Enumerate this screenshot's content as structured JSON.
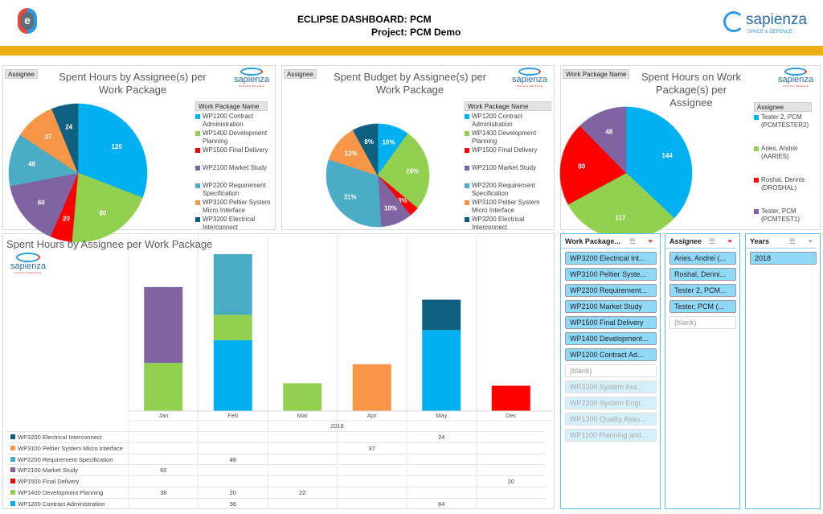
{
  "header": {
    "title": "ECLIPSE DASHBOARD: PCM",
    "project": "Project: PCM Demo",
    "logo_left": "e",
    "logo_right": {
      "name": "sapienza",
      "tagline": "SPACE & DEFENCE"
    }
  },
  "colors": {
    "accent_bar": "#ECB015",
    "WP1200": "#00B0F0",
    "WP1400": "#92D050",
    "WP1500": "#FF0000",
    "WP2100": "#8064A2",
    "WP2200": "#4BACC6",
    "WP3100": "#F79646",
    "WP3200": "#0E5F80"
  },
  "work_packages": [
    {
      "id": "WP1200",
      "label": "WP1200 Contract Administration"
    },
    {
      "id": "WP1400",
      "label": "WP1400 Development Planning"
    },
    {
      "id": "WP1500",
      "label": "WP1500 Final Delivery"
    },
    {
      "id": "WP2100",
      "label": "WP2100 Market Study"
    },
    {
      "id": "WP2200",
      "label": "WP2200 Requirement Specification"
    },
    {
      "id": "WP3100",
      "label": "WP3100 Peltier System Micro Interface"
    },
    {
      "id": "WP3200",
      "label": "WP3200 Electrical Interconnect"
    }
  ],
  "chart_data": [
    {
      "type": "pie",
      "title": "Spent Hours by Assignee(s) per Work Package",
      "filter_button": "Assignee",
      "legend_title": "Work Package Name",
      "legend": "right",
      "categories": [
        "WP1200",
        "WP1400",
        "WP1500",
        "WP2100",
        "WP2200",
        "WP3100",
        "WP3200"
      ],
      "values": [
        120,
        80,
        20,
        60,
        48,
        37,
        24
      ],
      "labels": [
        "120",
        "80",
        "20",
        "60",
        "48",
        "37",
        "24"
      ]
    },
    {
      "type": "pie",
      "title": "Spent Budget by Assignee(s) per Work Package",
      "filter_button": "Assignee",
      "legend_title": "Work Package Name",
      "legend": "right",
      "categories": [
        "WP1200",
        "WP1400",
        "WP1500",
        "WP2100",
        "WP2200",
        "WP3100",
        "WP3200"
      ],
      "values": [
        10,
        26,
        3,
        10,
        31,
        12,
        8
      ],
      "labels": [
        "10%",
        "26%",
        "3%",
        "10%",
        "31%",
        "12%",
        "8%"
      ]
    },
    {
      "type": "pie",
      "title": "Spent Hours on Work Package(s) per Assignee",
      "filter_button": "Work Package Name",
      "legend_title": "Assignee",
      "legend": "right",
      "categories": [
        "Tester 2, PCM (PCMTESTER2)",
        "Aries, Andrei (AARIES)",
        "Roshal, Dennis (DROSHAL)",
        "Tester, PCM (PCMTEST1)"
      ],
      "colors": [
        "#00B0F0",
        "#92D050",
        "#FF0000",
        "#8064A2"
      ],
      "values": [
        144,
        117,
        80,
        48
      ],
      "labels": [
        "144",
        "117",
        "80",
        "48"
      ]
    },
    {
      "type": "bar",
      "stacked": true,
      "title": "Spent Hours by Assignee per Work Package",
      "categories": [
        "Jan",
        "Feb",
        "Mar",
        "Apr",
        "May",
        "Dec"
      ],
      "group_label": "2018",
      "series": [
        {
          "name": "WP3200 Electrical Interconnect",
          "key": "WP3200",
          "values": [
            null,
            null,
            null,
            null,
            24,
            null
          ]
        },
        {
          "name": "WP3100 Peltier System Micro Interface",
          "key": "WP3100",
          "values": [
            null,
            null,
            null,
            37,
            null,
            null
          ]
        },
        {
          "name": "WP2200 Requirement Specification",
          "key": "WP2200",
          "values": [
            null,
            48,
            null,
            null,
            null,
            null
          ]
        },
        {
          "name": "WP2100 Market Study",
          "key": "WP2100",
          "values": [
            60,
            null,
            null,
            null,
            null,
            null
          ]
        },
        {
          "name": "WP1500 Final Delivery",
          "key": "WP1500",
          "values": [
            null,
            null,
            null,
            null,
            null,
            20
          ]
        },
        {
          "name": "WP1400 Development Planning",
          "key": "WP1400",
          "values": [
            38,
            20,
            22,
            null,
            null,
            null
          ]
        },
        {
          "name": "WP1200 Contract Administration",
          "key": "WP1200",
          "values": [
            null,
            56,
            null,
            null,
            64,
            null
          ]
        }
      ]
    }
  ],
  "slicers": [
    {
      "title": "Work Package...",
      "items": [
        {
          "label": "WP3200 Electrical Int...",
          "state": "selected"
        },
        {
          "label": "WP3100 Peltier Syste...",
          "state": "selected"
        },
        {
          "label": "WP2200 Requirement...",
          "state": "selected"
        },
        {
          "label": "WP2100 Market Study",
          "state": "selected"
        },
        {
          "label": "WP1500 Final Delivery",
          "state": "selected"
        },
        {
          "label": "WP1400 Development...",
          "state": "selected"
        },
        {
          "label": "WP1200 Contract Ad...",
          "state": "selected"
        },
        {
          "label": "(blank)",
          "state": "blank"
        },
        {
          "label": "WP3300 System Ass...",
          "state": "dim"
        },
        {
          "label": "WP2300 System Engi...",
          "state": "dim"
        },
        {
          "label": "WP1300 Quality Assu...",
          "state": "dim"
        },
        {
          "label": "WP1100 Planning and...",
          "state": "dim"
        }
      ]
    },
    {
      "title": "Assignee",
      "items": [
        {
          "label": "Aries, Andrei (...",
          "state": "selected"
        },
        {
          "label": "Roshal, Denni...",
          "state": "selected"
        },
        {
          "label": "Tester 2, PCM...",
          "state": "selected"
        },
        {
          "label": "Tester, PCM (...",
          "state": "selected"
        },
        {
          "label": "(blank)",
          "state": "blank"
        }
      ]
    },
    {
      "title": "Years",
      "items": [
        {
          "label": "2018",
          "state": "selected"
        }
      ]
    }
  ]
}
